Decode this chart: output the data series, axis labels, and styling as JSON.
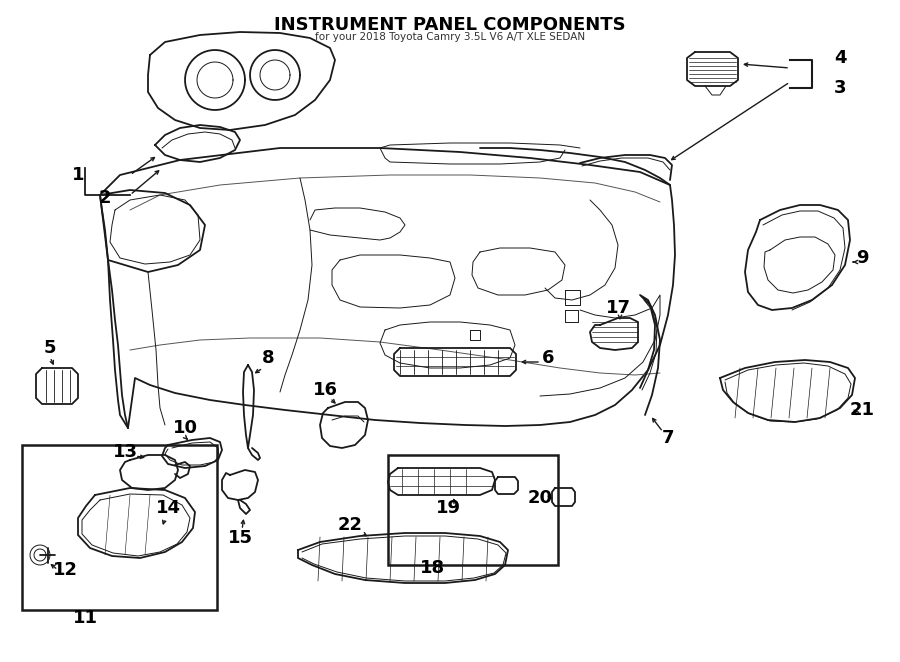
{
  "title": "INSTRUMENT PANEL COMPONENTS",
  "subtitle": "for your 2018 Toyota Camry 3.5L V6 A/T XLE SEDAN",
  "bg_color": "#ffffff",
  "line_color": "#1a1a1a",
  "label_color": "#000000",
  "fig_width": 9.0,
  "fig_height": 6.62,
  "dpi": 100
}
